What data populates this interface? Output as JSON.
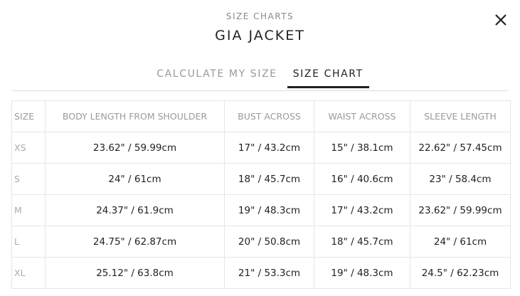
{
  "header": {
    "subtitle": "SIZE CHARTS",
    "title": "GIA JACKET",
    "close_icon": "close-x-icon"
  },
  "tabs": [
    {
      "label": "CALCULATE MY SIZE",
      "active": false
    },
    {
      "label": "SIZE CHART",
      "active": true
    }
  ],
  "table": {
    "headers": [
      "SIZE",
      "BODY LENGTH FROM SHOULDER",
      "BUST ACROSS",
      "WAIST ACROSS",
      "SLEEVE LENGTH"
    ],
    "rows": [
      [
        "XS",
        "23.62\" / 59.99cm",
        "17\" / 43.2cm",
        "15\" / 38.1cm",
        "22.62\" / 57.45cm"
      ],
      [
        "S",
        "24\" / 61cm",
        "18\" / 45.7cm",
        "16\" / 40.6cm",
        "23\" / 58.4cm"
      ],
      [
        "M",
        "24.37\" / 61.9cm",
        "19\" / 48.3cm",
        "17\" / 43.2cm",
        "23.62\" / 59.99cm"
      ],
      [
        "L",
        "24.75\" / 62.87cm",
        "20\" / 50.8cm",
        "18\" / 45.7cm",
        "24\" / 61cm"
      ],
      [
        "XL",
        "25.12\" / 63.8cm",
        "21\" / 53.3cm",
        "19\" / 48.3cm",
        "24.5\" / 62.23cm"
      ]
    ]
  }
}
